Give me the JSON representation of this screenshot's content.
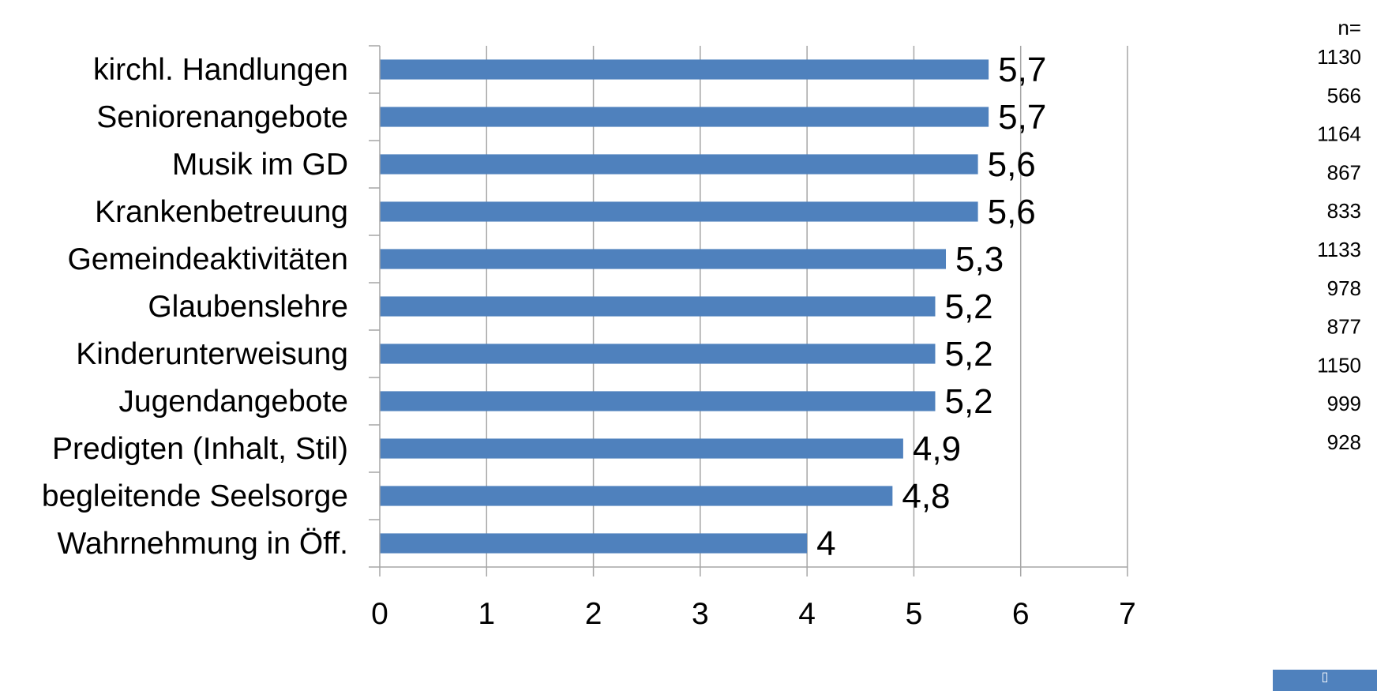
{
  "chart_data": {
    "type": "bar",
    "orientation": "horizontal",
    "categories": [
      "kirchl. Handlungen",
      "Seniorenangebote",
      "Musik im GD",
      "Krankenbetreuung",
      "Gemeindeaktivitäten",
      "Glaubenslehre",
      "Kinderunterweisung",
      "Jugendangebote",
      "Predigten (Inhalt, Stil)",
      "begleitende Seelsorge",
      "Wahrnehmung in Öff."
    ],
    "values": [
      5.7,
      5.7,
      5.6,
      5.6,
      5.3,
      5.2,
      5.2,
      5.2,
      4.9,
      4.8,
      4
    ],
    "value_labels": [
      "5,7",
      "5,7",
      "5,6",
      "5,6",
      "5,3",
      "5,2",
      "5,2",
      "5,2",
      "4,9",
      "4,8",
      "4"
    ],
    "n_header": "n=",
    "n_values": [
      "1130",
      "566",
      "1164",
      "867",
      "833",
      "1133",
      "978",
      "877",
      "1150",
      "999",
      "928"
    ],
    "xlim": [
      0,
      7
    ],
    "xticks": [
      "0",
      "1",
      "2",
      "3",
      "4",
      "5",
      "6",
      "7"
    ],
    "grid": true,
    "bar_color": "#4f81bd",
    "grid_color": "#a6a6a6",
    "corner_icon": "page-corner-icon"
  }
}
